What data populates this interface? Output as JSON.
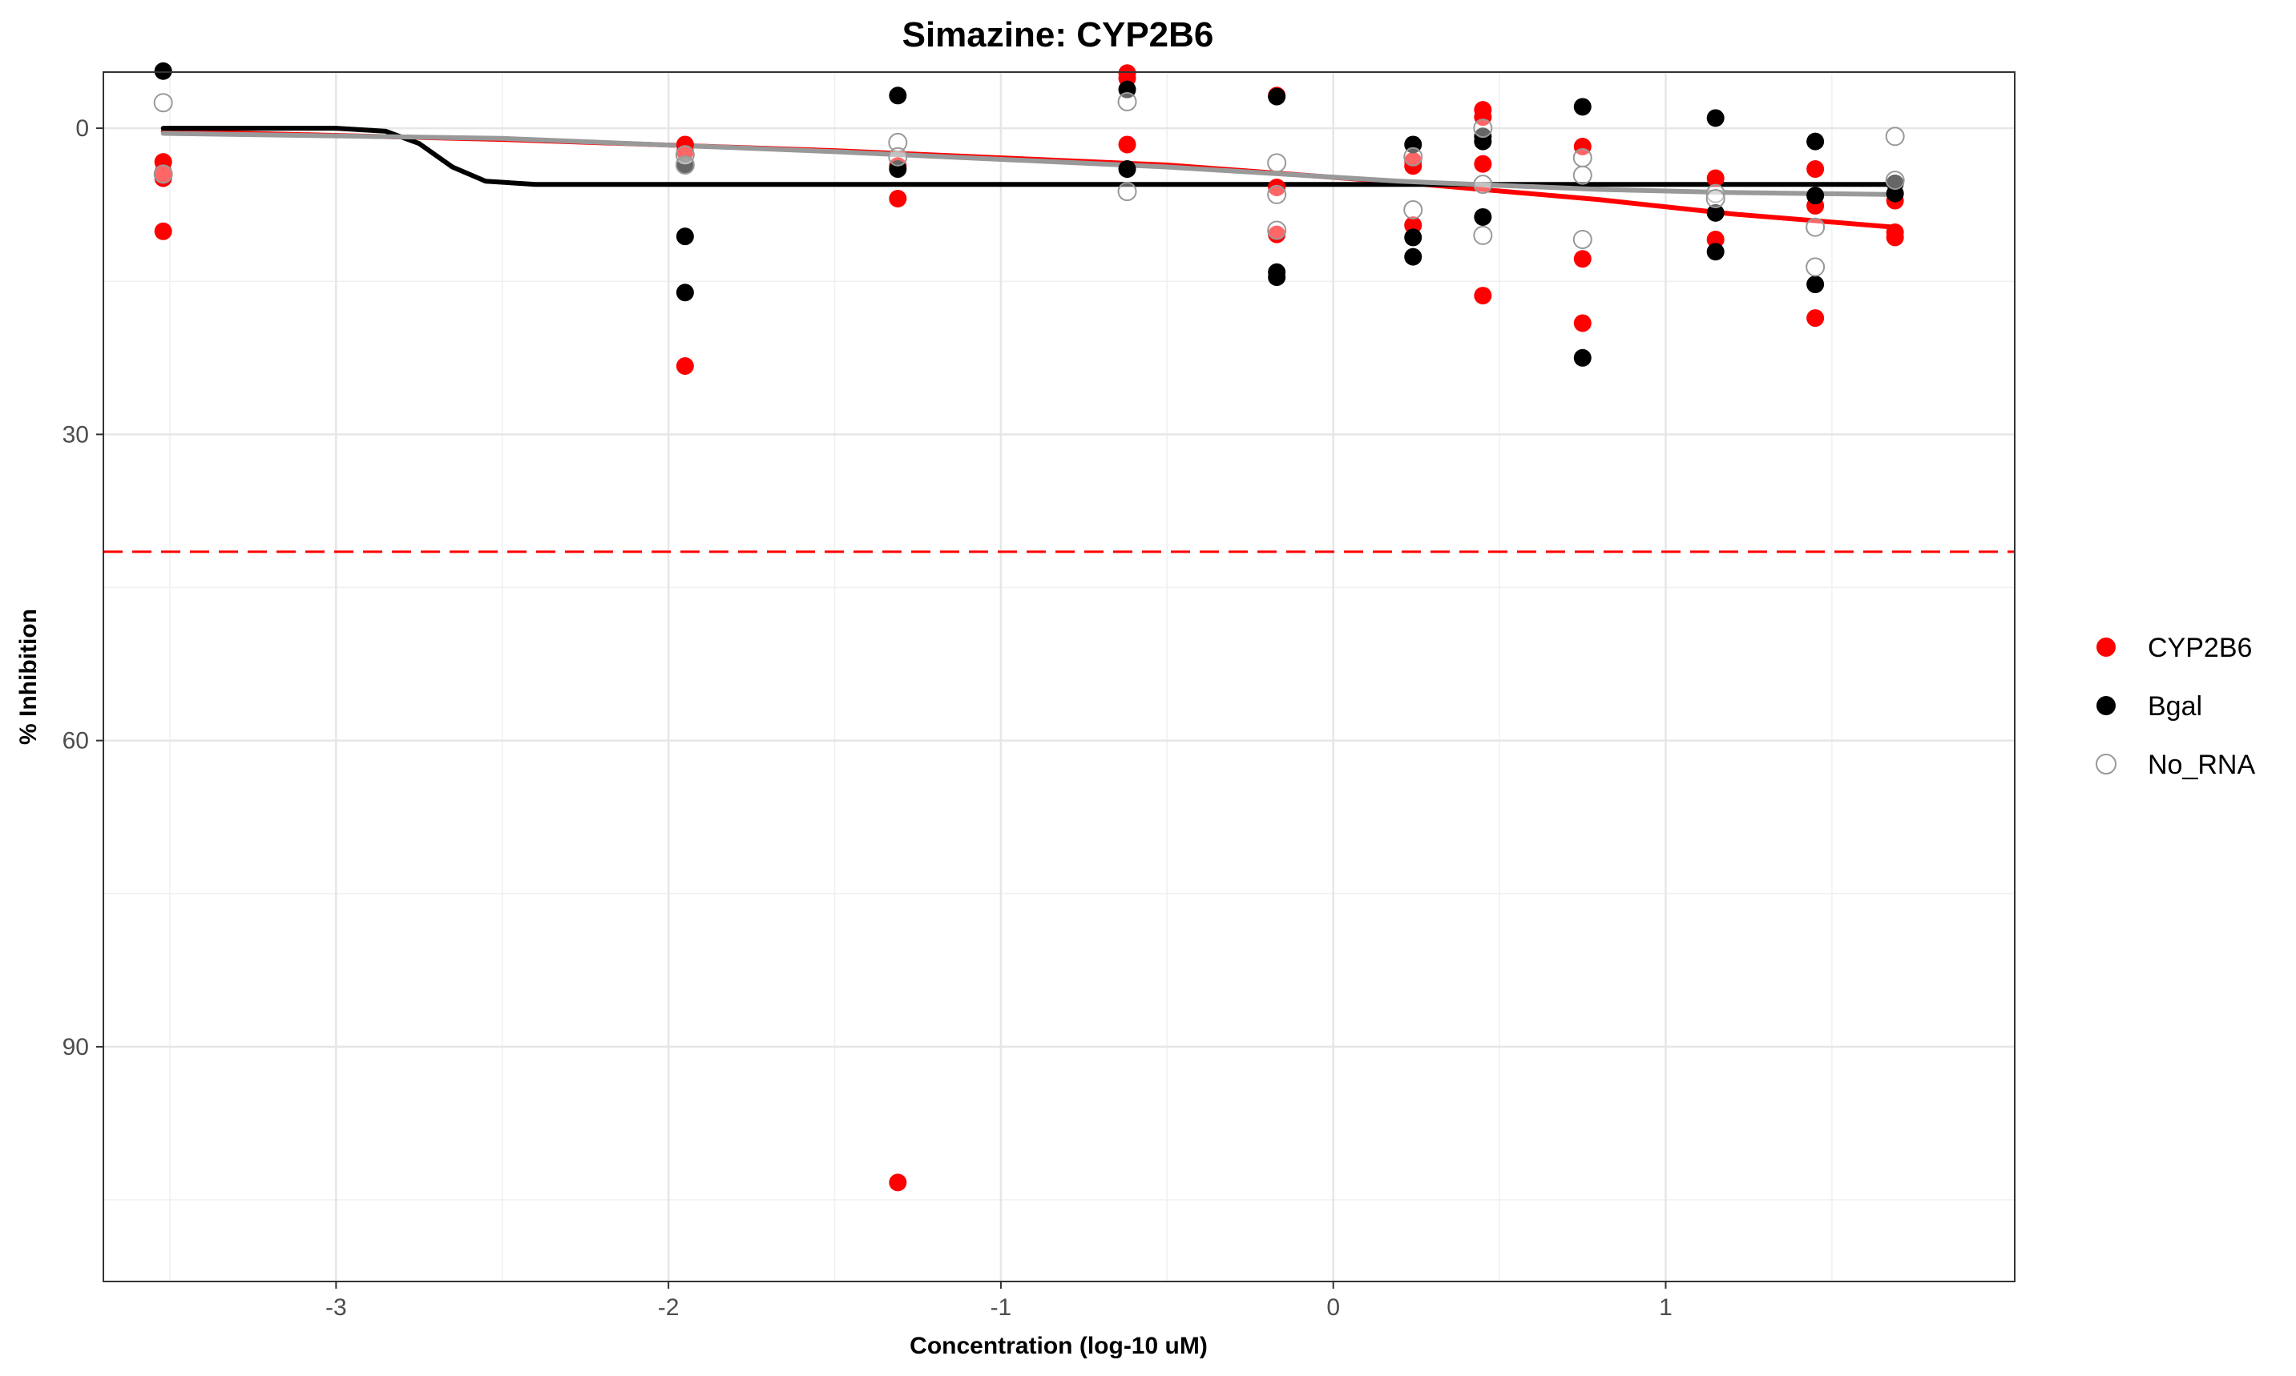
{
  "chart_data": {
    "type": "scatter",
    "title": "Simazine: CYP2B6",
    "xlabel": "Concentration (log-10 uM)",
    "ylabel": "% Inhibition",
    "xlim": [
      -3.7,
      2.05
    ],
    "ylim": [
      -5.5,
      113
    ],
    "y_reversed": true,
    "x_ticks": [
      -3,
      -2,
      -1,
      0,
      1
    ],
    "x_tick_labels": [
      "-3",
      "-2",
      "-1",
      "0",
      "1"
    ],
    "y_ticks": [
      0,
      30,
      60,
      90
    ],
    "y_tick_labels": [
      "0",
      "30",
      "60",
      "90"
    ],
    "grid": true,
    "legend_position": "right",
    "threshold_line": {
      "y": 41.5,
      "style": "dashed",
      "color": "#ff0000"
    },
    "series": [
      {
        "name": "CYP2B6",
        "color": "#ff0000",
        "marker": "filled",
        "points": [
          [
            -3.52,
            3.3
          ],
          [
            -3.52,
            4.3
          ],
          [
            -3.52,
            4.9
          ],
          [
            -3.52,
            10.1
          ],
          [
            -1.95,
            1.6
          ],
          [
            -1.95,
            2.3
          ],
          [
            -1.95,
            23.3
          ],
          [
            -1.31,
            3.7
          ],
          [
            -1.31,
            6.9
          ],
          [
            -1.31,
            103.3
          ],
          [
            -0.62,
            -5.4
          ],
          [
            -0.62,
            -4.9
          ],
          [
            -0.62,
            1.6
          ],
          [
            -0.17,
            -3.2
          ],
          [
            -0.17,
            5.8
          ],
          [
            -0.17,
            10.4
          ],
          [
            0.24,
            3.2
          ],
          [
            0.24,
            3.7
          ],
          [
            0.24,
            9.5
          ],
          [
            0.45,
            -1.8
          ],
          [
            0.45,
            -1.1
          ],
          [
            0.45,
            3.5
          ],
          [
            0.45,
            16.4
          ],
          [
            0.75,
            1.8
          ],
          [
            0.75,
            12.8
          ],
          [
            0.75,
            19.1
          ],
          [
            1.15,
            4.9
          ],
          [
            1.15,
            10.9
          ],
          [
            1.45,
            4.0
          ],
          [
            1.45,
            7.6
          ],
          [
            1.45,
            18.6
          ],
          [
            1.69,
            7.1
          ],
          [
            1.69,
            10.2
          ],
          [
            1.69,
            10.7
          ]
        ],
        "fit": [
          [
            -3.52,
            0.3
          ],
          [
            -2.5,
            1.1
          ],
          [
            -1.5,
            2.2
          ],
          [
            -0.5,
            3.6
          ],
          [
            0.2,
            5.3
          ],
          [
            0.8,
            7.0
          ],
          [
            1.2,
            8.4
          ],
          [
            1.69,
            9.7
          ]
        ]
      },
      {
        "name": "Bgal",
        "color": "#000000",
        "marker": "filled",
        "points": [
          [
            -3.52,
            -5.6
          ],
          [
            -1.95,
            3.6
          ],
          [
            -1.95,
            10.6
          ],
          [
            -1.95,
            16.1
          ],
          [
            -1.31,
            -3.2
          ],
          [
            -1.31,
            4.0
          ],
          [
            -0.62,
            -3.8
          ],
          [
            -0.62,
            4.0
          ],
          [
            -0.17,
            -3.1
          ],
          [
            -0.17,
            14.1
          ],
          [
            -0.17,
            14.6
          ],
          [
            0.24,
            1.6
          ],
          [
            0.24,
            10.7
          ],
          [
            0.24,
            12.6
          ],
          [
            0.45,
            0.8
          ],
          [
            0.45,
            1.3
          ],
          [
            0.45,
            8.7
          ],
          [
            0.75,
            -2.1
          ],
          [
            0.75,
            22.5
          ],
          [
            1.15,
            -1.0
          ],
          [
            1.15,
            8.3
          ],
          [
            1.15,
            12.1
          ],
          [
            1.45,
            1.3
          ],
          [
            1.45,
            6.6
          ],
          [
            1.45,
            15.3
          ],
          [
            1.69,
            5.4
          ],
          [
            1.69,
            6.4
          ]
        ],
        "fit": [
          [
            -3.52,
            0.0
          ],
          [
            -3.0,
            0.0
          ],
          [
            -2.85,
            0.3
          ],
          [
            -2.75,
            1.5
          ],
          [
            -2.65,
            3.8
          ],
          [
            -2.55,
            5.2
          ],
          [
            -2.4,
            5.5
          ],
          [
            1.69,
            5.5
          ]
        ]
      },
      {
        "name": "No_RNA",
        "color": "#999999",
        "marker": "open",
        "points": [
          [
            -3.52,
            -2.5
          ],
          [
            -3.52,
            4.5
          ],
          [
            -1.95,
            2.6
          ],
          [
            -1.95,
            3.6
          ],
          [
            -1.31,
            1.4
          ],
          [
            -1.31,
            2.8
          ],
          [
            -0.62,
            -2.6
          ],
          [
            -0.62,
            6.2
          ],
          [
            -0.17,
            3.4
          ],
          [
            -0.17,
            6.5
          ],
          [
            -0.17,
            10.0
          ],
          [
            0.24,
            2.8
          ],
          [
            0.24,
            8.0
          ],
          [
            0.45,
            0.0
          ],
          [
            0.45,
            5.5
          ],
          [
            0.45,
            10.5
          ],
          [
            0.75,
            2.9
          ],
          [
            0.75,
            4.6
          ],
          [
            0.75,
            10.9
          ],
          [
            1.15,
            6.4
          ],
          [
            1.15,
            6.9
          ],
          [
            1.45,
            9.7
          ],
          [
            1.45,
            13.6
          ],
          [
            1.69,
            0.8
          ],
          [
            1.69,
            5.1
          ]
        ],
        "fit": [
          [
            -3.52,
            0.5
          ],
          [
            -2.5,
            1.0
          ],
          [
            -1.5,
            2.3
          ],
          [
            -0.5,
            3.8
          ],
          [
            0.2,
            5.2
          ],
          [
            0.8,
            6.0
          ],
          [
            1.2,
            6.3
          ],
          [
            1.69,
            6.5
          ]
        ]
      }
    ]
  }
}
